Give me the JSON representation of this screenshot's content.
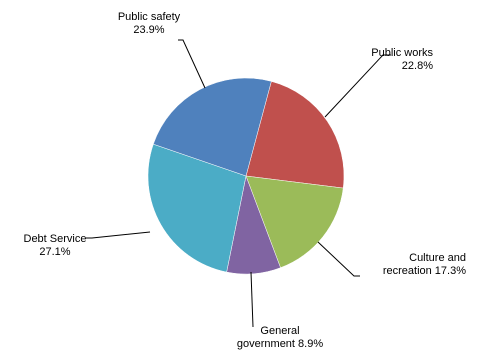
{
  "chart_data": {
    "type": "pie",
    "start_angle_deg": 15,
    "direction": "clockwise",
    "legend": "none",
    "slices": [
      {
        "label_lines": [
          "Public works",
          "22.8%"
        ],
        "value": 22.8,
        "color": "#c0504d"
      },
      {
        "label_lines": [
          "Culture and",
          "recreation 17.3%"
        ],
        "value": 17.3,
        "color": "#9bbb59"
      },
      {
        "label_lines": [
          "General",
          "government  8.9%"
        ],
        "value": 8.9,
        "color": "#8064a2"
      },
      {
        "label_lines": [
          "Debt Service",
          "27.1%"
        ],
        "value": 27.1,
        "color": "#4bacc6"
      },
      {
        "label_lines": [
          "Public safety",
          "23.9%"
        ],
        "value": 23.9,
        "color": "#4f81bd"
      }
    ]
  }
}
